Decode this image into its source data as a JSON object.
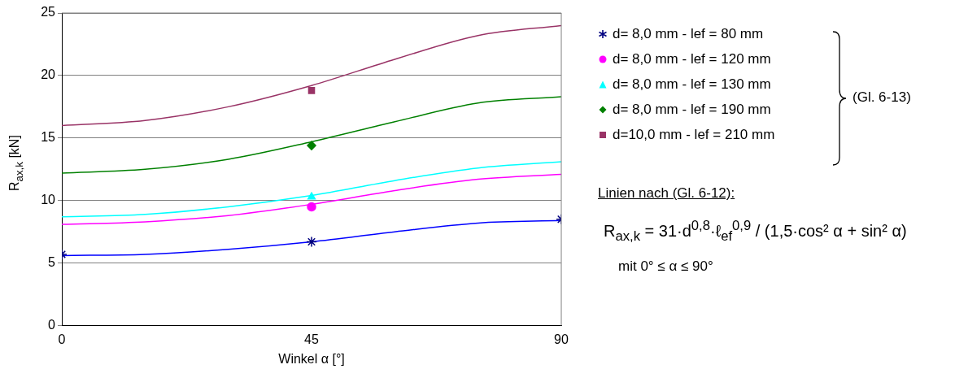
{
  "chart_data": {
    "type": "line",
    "xlabel": "Winkel α [°]",
    "ylabel": "R$_{ax,k}$ [kN]",
    "xlim": [
      0,
      90
    ],
    "xticks": [
      0,
      45,
      90
    ],
    "ylim": [
      0,
      25
    ],
    "yticks": [
      0,
      5,
      10,
      15,
      20,
      25
    ],
    "grid": "y",
    "legend": "right",
    "series": [
      {
        "type": "line",
        "color": "#0000ff",
        "marker": "none",
        "x": [
          0,
          15,
          30,
          45,
          60,
          75,
          90
        ],
        "values": [
          5.6,
          5.7,
          6.1,
          6.7,
          7.5,
          8.2,
          8.4
        ]
      },
      {
        "type": "line",
        "color": "#ff00ff",
        "marker": "none",
        "x": [
          0,
          15,
          30,
          45,
          60,
          75,
          90
        ],
        "values": [
          8.1,
          8.3,
          8.8,
          9.7,
          10.8,
          11.7,
          12.1
        ]
      },
      {
        "type": "line",
        "color": "#00ffff",
        "marker": "none",
        "x": [
          0,
          15,
          30,
          45,
          60,
          75,
          90
        ],
        "values": [
          8.7,
          8.9,
          9.5,
          10.4,
          11.6,
          12.6,
          13.1
        ]
      },
      {
        "type": "line",
        "color": "#008000",
        "marker": "none",
        "x": [
          0,
          15,
          30,
          45,
          60,
          75,
          90
        ],
        "values": [
          12.2,
          12.5,
          13.3,
          14.7,
          16.3,
          17.8,
          18.3
        ]
      },
      {
        "type": "line",
        "color": "#993366",
        "marker": "none",
        "x": [
          0,
          15,
          30,
          45,
          60,
          75,
          90
        ],
        "values": [
          16.0,
          16.4,
          17.5,
          19.2,
          21.3,
          23.2,
          24.0
        ]
      },
      {
        "type": "scatter",
        "name": "d=  8,0 mm - lef =  80 mm",
        "color": "#000080",
        "marker": "cross",
        "x": [
          0,
          45,
          90
        ],
        "values": [
          5.7,
          6.7,
          8.5
        ]
      },
      {
        "type": "scatter",
        "name": "d=  8,0 mm - lef = 120 mm",
        "color": "#ff00ff",
        "marker": "circle",
        "x": [
          45
        ],
        "values": [
          9.5
        ]
      },
      {
        "type": "scatter",
        "name": "d=  8,0 mm - lef = 130 mm",
        "color": "#00ffff",
        "marker": "triangle",
        "x": [
          45
        ],
        "values": [
          10.3
        ]
      },
      {
        "type": "scatter",
        "name": "d=  8,0 mm - lef = 190 mm",
        "color": "#008000",
        "marker": "diamond",
        "x": [
          45
        ],
        "values": [
          14.4
        ]
      },
      {
        "type": "scatter",
        "name": "d=10,0 mm - lef = 210 mm",
        "color": "#993366",
        "marker": "square",
        "x": [
          45
        ],
        "values": [
          18.8
        ]
      }
    ],
    "annotations": [
      "(Gl. 6-13)",
      "Linien nach (Gl. 6-12):",
      "R$_{ax,k}$ = 31·d$^{0,8}$·ℓ$_{ef}$$^{0,9}$ / (1,5·cos² α + sin² α)",
      "mit 0° ≤ α ≤ 90°"
    ]
  }
}
